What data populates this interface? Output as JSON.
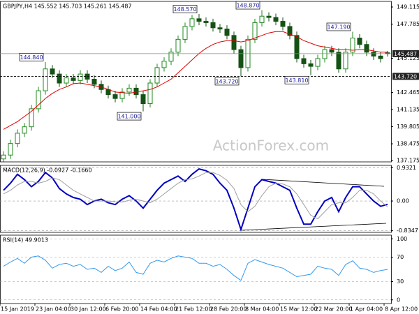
{
  "chart_data": [
    {
      "type": "candlestick",
      "title": "GBPJPY,H4  145.552 145.703 145.261 145.487",
      "watermark": "ActionForex.com",
      "up_color": "#1f8a1f",
      "down_color": "#145214",
      "open": [
        137.3,
        137.6,
        138.5,
        139.3,
        139.8,
        141.2,
        142.6,
        144.3,
        143.9,
        143.2,
        143.6,
        143.4,
        143.9,
        143.5,
        143.1,
        142.7,
        142.3,
        142.0,
        142.5,
        142.8,
        142.3,
        141.6,
        143.2,
        144.4,
        144.9,
        145.6,
        146.6,
        147.6,
        148.2,
        148.0,
        147.9,
        147.5,
        147.4,
        146.9,
        145.8,
        144.4,
        146.6,
        147.9,
        148.4,
        148.3,
        148.0,
        147.6,
        146.9,
        145.1,
        144.7,
        144.5,
        145.1,
        145.8,
        145.6,
        144.3,
        145.6,
        146.7,
        146.2,
        145.6,
        145.3,
        145.552
      ],
      "high": [
        137.9,
        138.8,
        139.6,
        140.1,
        141.5,
        142.9,
        144.84,
        144.6,
        144.2,
        143.9,
        143.9,
        144.2,
        144.2,
        143.8,
        143.4,
        143.0,
        142.6,
        142.8,
        143.1,
        143.1,
        142.6,
        143.5,
        144.7,
        145.2,
        145.9,
        146.9,
        147.9,
        148.5,
        148.57,
        148.3,
        148.2,
        147.8,
        147.7,
        147.2,
        146.1,
        146.9,
        148.2,
        148.87,
        148.7,
        148.6,
        148.3,
        147.9,
        147.2,
        145.4,
        145.0,
        145.4,
        146.1,
        146.1,
        145.9,
        145.9,
        147.19,
        147.0,
        146.5,
        145.9,
        145.6,
        145.703
      ],
      "low": [
        137.1,
        137.3,
        138.2,
        139.0,
        139.5,
        140.9,
        142.3,
        143.6,
        142.9,
        142.9,
        143.1,
        143.1,
        143.2,
        142.8,
        142.4,
        142.0,
        141.7,
        141.7,
        142.2,
        142.0,
        141.0,
        141.3,
        142.9,
        144.1,
        144.6,
        145.3,
        146.3,
        147.3,
        147.7,
        147.6,
        147.2,
        147.1,
        146.6,
        145.5,
        143.72,
        144.1,
        146.3,
        147.6,
        148.0,
        147.7,
        147.3,
        146.6,
        144.8,
        144.4,
        143.81,
        144.2,
        144.8,
        145.3,
        144.0,
        144.0,
        145.3,
        145.9,
        145.3,
        145.0,
        144.8,
        145.261
      ],
      "close": [
        137.6,
        138.5,
        139.3,
        139.8,
        141.2,
        142.6,
        144.3,
        143.9,
        143.2,
        143.6,
        143.4,
        143.9,
        143.5,
        143.1,
        142.7,
        142.3,
        142.0,
        142.5,
        142.8,
        142.3,
        141.6,
        143.2,
        144.4,
        144.9,
        145.6,
        146.6,
        147.6,
        148.2,
        148.0,
        147.9,
        147.5,
        147.4,
        146.9,
        145.8,
        144.4,
        146.6,
        147.9,
        148.4,
        148.3,
        148.0,
        147.6,
        146.9,
        145.1,
        144.7,
        144.5,
        145.1,
        145.8,
        145.6,
        144.3,
        145.6,
        146.7,
        146.2,
        145.6,
        145.3,
        145.1,
        145.487
      ],
      "series": [
        {
          "color": "#e00000",
          "values": [
            139.6,
            139.9,
            140.2,
            140.6,
            141.0,
            141.5,
            142.0,
            142.4,
            142.7,
            142.9,
            143.15,
            143.2,
            143.1,
            143.0,
            142.9,
            142.7,
            142.5,
            142.45,
            142.4,
            142.5,
            142.6,
            142.7,
            142.9,
            143.2,
            143.5,
            144.0,
            144.5,
            145.0,
            145.5,
            145.9,
            146.2,
            146.4,
            146.5,
            146.5,
            146.4,
            146.5,
            146.7,
            146.9,
            147.1,
            147.2,
            147.2,
            147.0,
            146.8,
            146.5,
            146.3,
            146.1,
            146.0,
            145.9,
            145.8,
            145.8,
            145.75,
            145.8,
            145.8,
            145.7,
            145.6,
            145.6
          ]
        }
      ],
      "annotations": [
        {
          "x": 6,
          "value": 144.84,
          "label": "144.840",
          "position": "above"
        },
        {
          "x": 28,
          "value": 148.57,
          "label": "148.570",
          "position": "above"
        },
        {
          "x": 37,
          "value": 148.87,
          "label": "148.870",
          "position": "above"
        },
        {
          "x": 50,
          "value": 147.19,
          "label": "147.190",
          "position": "above"
        },
        {
          "x": 34,
          "value": 143.72,
          "label": "143.720",
          "position": "below"
        },
        {
          "x": 44,
          "value": 143.81,
          "label": "143.810",
          "position": "below"
        },
        {
          "x": 20,
          "value": 141.0,
          "label": "141.000",
          "position": "below"
        }
      ],
      "price_lines": [
        {
          "value": 145.487,
          "label": "145.487",
          "style": "solid"
        },
        {
          "value": 143.72,
          "label": "143.720",
          "style": "dashed"
        }
      ],
      "ylim": [
        137.07,
        149.55
      ],
      "yticks": [
        149.115,
        147.785,
        145.125,
        142.465,
        141.135,
        139.805,
        138.475,
        137.175
      ]
    },
    {
      "type": "line",
      "title": "MACD(12,26,9) -0.0927 -0.1660",
      "series": [
        {
          "color": "#0000c0",
          "values": [
            0.3,
            0.5,
            0.75,
            0.6,
            0.4,
            0.55,
            0.8,
            0.65,
            0.35,
            0.2,
            0.1,
            0.05,
            -0.1,
            0.0,
            0.05,
            -0.05,
            -0.1,
            0.05,
            0.15,
            0.0,
            -0.2,
            0.05,
            0.3,
            0.5,
            0.6,
            0.7,
            0.55,
            0.75,
            0.9,
            0.85,
            0.75,
            0.5,
            0.3,
            -0.2,
            -0.8,
            -0.2,
            0.4,
            0.6,
            0.55,
            0.5,
            0.4,
            0.3,
            -0.2,
            -0.65,
            -0.65,
            -0.3,
            0.0,
            0.1,
            -0.3,
            0.1,
            0.4,
            0.4,
            0.2,
            0.0,
            -0.15,
            -0.0927
          ]
        },
        {
          "color": "#a0a0a0",
          "values": [
            0.2,
            0.3,
            0.45,
            0.55,
            0.55,
            0.5,
            0.55,
            0.65,
            0.6,
            0.45,
            0.3,
            0.2,
            0.1,
            0.0,
            0.0,
            0.0,
            -0.02,
            -0.03,
            0.02,
            0.05,
            0.0,
            -0.05,
            0.05,
            0.2,
            0.35,
            0.5,
            0.6,
            0.62,
            0.7,
            0.8,
            0.8,
            0.72,
            0.58,
            0.35,
            -0.1,
            -0.3,
            -0.15,
            0.15,
            0.4,
            0.5,
            0.48,
            0.4,
            0.2,
            -0.1,
            -0.4,
            -0.5,
            -0.3,
            -0.1,
            -0.05,
            -0.05,
            0.1,
            0.3,
            0.3,
            0.2,
            0.0,
            -0.166
          ]
        }
      ],
      "ylim": [
        -0.88,
        1.0
      ],
      "yticks": [
        0.9321,
        {
          "value": 0,
          "label": "0.00"
        },
        -0.8347
      ]
    },
    {
      "type": "line",
      "title": "RSI(14) 49.9013",
      "series": [
        {
          "color": "#3399ee",
          "values": [
            55,
            62,
            68,
            60,
            70,
            72,
            65,
            52,
            58,
            60,
            55,
            58,
            50,
            52,
            45,
            55,
            48,
            52,
            62,
            45,
            42,
            60,
            65,
            62,
            68,
            72,
            70,
            68,
            60,
            60,
            55,
            58,
            50,
            40,
            32,
            60,
            66,
            62,
            58,
            55,
            52,
            45,
            38,
            40,
            42,
            55,
            52,
            50,
            40,
            58,
            64,
            52,
            50,
            45,
            48,
            49.9
          ]
        }
      ],
      "ylim": [
        -6,
        106
      ],
      "yticks": [
        100,
        70,
        30,
        0
      ],
      "xticks": [
        {
          "value": 0,
          "label": "15 Jan 2019"
        },
        {
          "value": 5,
          "label": "23 Jan 04:00"
        },
        {
          "value": 10,
          "label": "30 Jan 12:00"
        },
        {
          "value": 15,
          "label": "6 Feb 20:00"
        },
        {
          "value": 20,
          "label": "14 Feb 04:00"
        },
        {
          "value": 25,
          "label": "21 Feb 12:00"
        },
        {
          "value": 30,
          "label": "28 Feb 20:00"
        },
        {
          "value": 35,
          "label": "8 Mar 04:00"
        },
        {
          "value": 40,
          "label": "15 Mar 12:00"
        },
        {
          "value": 45,
          "label": "22 Mar 20:00"
        },
        {
          "value": 50,
          "label": "1 Apr 04:00"
        },
        {
          "value": 55,
          "label": "8 Apr 12:00"
        }
      ]
    }
  ]
}
